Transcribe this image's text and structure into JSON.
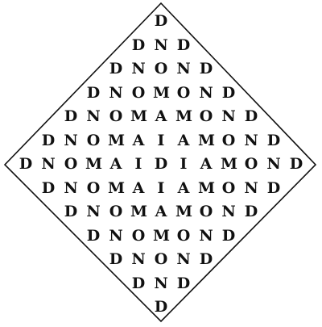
{
  "colors": {
    "ink": "#111111",
    "background": "#ffffff"
  },
  "rows": [
    [
      "D"
    ],
    [
      "D",
      "N",
      "D"
    ],
    [
      "D",
      "N",
      "O",
      "N",
      "D"
    ],
    [
      "D",
      "N",
      "O",
      "M",
      "O",
      "N",
      "D"
    ],
    [
      "D",
      "N",
      "O",
      "M",
      "A",
      "M",
      "O",
      "N",
      "D"
    ],
    [
      "D",
      "N",
      "O",
      "M",
      "A",
      "I",
      "A",
      "M",
      "O",
      "N",
      "D"
    ],
    [
      "D",
      "N",
      "O",
      "M",
      "A",
      "I",
      "D",
      "I",
      "A",
      "M",
      "O",
      "N",
      "D"
    ],
    [
      "D",
      "N",
      "O",
      "M",
      "A",
      "I",
      "A",
      "M",
      "O",
      "N",
      "D"
    ],
    [
      "D",
      "N",
      "O",
      "M",
      "A",
      "M",
      "O",
      "N",
      "D"
    ],
    [
      "D",
      "N",
      "O",
      "M",
      "O",
      "N",
      "D"
    ],
    [
      "D",
      "N",
      "O",
      "N",
      "D"
    ],
    [
      "D",
      "N",
      "D"
    ],
    [
      "D"
    ]
  ]
}
